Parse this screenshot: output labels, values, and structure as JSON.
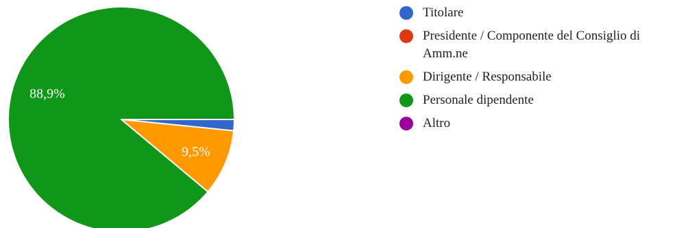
{
  "chart_data": {
    "type": "pie",
    "title": "",
    "slices": [
      {
        "label": "Titolare",
        "value": 1.6,
        "color": "#3366cc"
      },
      {
        "label": "Presidente / Componente del Consiglio di Amm.ne",
        "value": 0,
        "color": "#dc3912"
      },
      {
        "label": "Dirigente / Responsabile",
        "value": 9.5,
        "color": "#ff9900"
      },
      {
        "label": "Personale dipendente",
        "value": 88.9,
        "color": "#109618"
      },
      {
        "label": "Altro",
        "value": 0,
        "color": "#990099"
      }
    ],
    "data_labels": [
      "",
      "",
      "9,5%",
      "88,9%",
      ""
    ],
    "legend_position": "right",
    "start_direction": "east",
    "direction": "clockwise"
  }
}
